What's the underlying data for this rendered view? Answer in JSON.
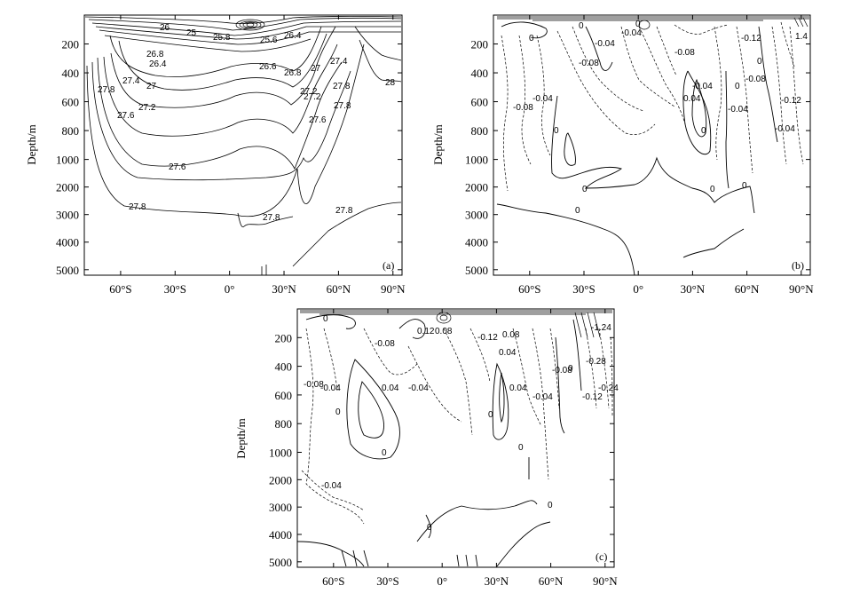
{
  "figure": {
    "panels": [
      "a",
      "b",
      "c"
    ]
  },
  "chart_data": [
    {
      "type": "contour",
      "panel_label": "(a)",
      "ylabel": "Depth/m",
      "x_tick_labels": [
        "60°S",
        "30°S",
        "0°",
        "30°N",
        "60°N",
        "90°N"
      ],
      "x_ticks": [
        -60,
        -30,
        0,
        30,
        60,
        90
      ],
      "xlim": [
        -80,
        95
      ],
      "y_tick_labels": [
        "200",
        "400",
        "600",
        "800",
        "1000",
        "2000",
        "3000",
        "4000",
        "5000"
      ],
      "y_ticks": [
        200,
        400,
        600,
        800,
        1000,
        2000,
        3000,
        4000,
        5000
      ],
      "ylim": [
        0,
        5200
      ],
      "y_scale": "piecewise: linear 0-1000 m, compressed 1000-5000 m",
      "contour_labels": [
        "26",
        "25",
        "25.8",
        "25.6",
        "26.4",
        "26.8",
        "26.4",
        "26.6",
        "26.8",
        "27",
        "27.2",
        "27.4",
        "27",
        "27.4",
        "27.2",
        "27.8",
        "27.6",
        "27.8",
        "28",
        "27.8",
        "27.6",
        "27.2",
        "27.6",
        "27.8",
        "27.8",
        "27.8"
      ],
      "line_style": "solid"
    },
    {
      "type": "contour",
      "panel_label": "(b)",
      "ylabel": "Depth/m",
      "x_tick_labels": [
        "60°S",
        "30°S",
        "0°",
        "30°N",
        "60°N",
        "90°N"
      ],
      "x_ticks": [
        -60,
        -30,
        0,
        30,
        60,
        90
      ],
      "xlim": [
        -80,
        95
      ],
      "y_tick_labels": [
        "200",
        "400",
        "600",
        "800",
        "1000",
        "2000",
        "3000",
        "4000",
        "5000"
      ],
      "y_ticks": [
        200,
        400,
        600,
        800,
        1000,
        2000,
        3000,
        4000,
        5000
      ],
      "ylim": [
        0,
        5200
      ],
      "contour_labels": [
        "0",
        "0",
        "-0.04",
        "-0.08",
        "-0.04",
        "-0.08",
        "0",
        "0",
        "0",
        "-0.12",
        "-0.08",
        "-0.04",
        "0",
        "-0.04",
        "0.04",
        "0",
        "-0.04",
        "0",
        "-0.08",
        "0",
        "-0.12",
        "-0.04",
        "1.4",
        "0",
        "0"
      ],
      "line_style": "solid for zero/positive, dashed for negative"
    },
    {
      "type": "contour",
      "panel_label": "(c)",
      "ylabel": "Depth/m",
      "x_tick_labels": [
        "60°S",
        "30°S",
        "0°",
        "30°N",
        "60°N",
        "90°N"
      ],
      "x_ticks": [
        -60,
        -30,
        0,
        30,
        60,
        90
      ],
      "xlim": [
        -80,
        95
      ],
      "y_tick_labels": [
        "200",
        "400",
        "600",
        "800",
        "1000",
        "2000",
        "3000",
        "4000",
        "5000"
      ],
      "y_ticks": [
        200,
        400,
        600,
        800,
        1000,
        2000,
        3000,
        4000,
        5000
      ],
      "ylim": [
        0,
        5200
      ],
      "contour_labels": [
        "0",
        "-0.08",
        "0.12",
        "0.08",
        "-0.12",
        "0.04",
        "-0.04",
        "-0.08",
        "-0.04",
        "0.08",
        "0.04",
        "0.04",
        "0",
        "-0.04",
        "0",
        "0",
        "-0.04",
        "0",
        "-0.08",
        "-0.12",
        "-0.24",
        "-0.28",
        "-1.24",
        "0",
        "0",
        "0"
      ],
      "line_style": "solid for zero/positive, dashed for negative"
    }
  ]
}
